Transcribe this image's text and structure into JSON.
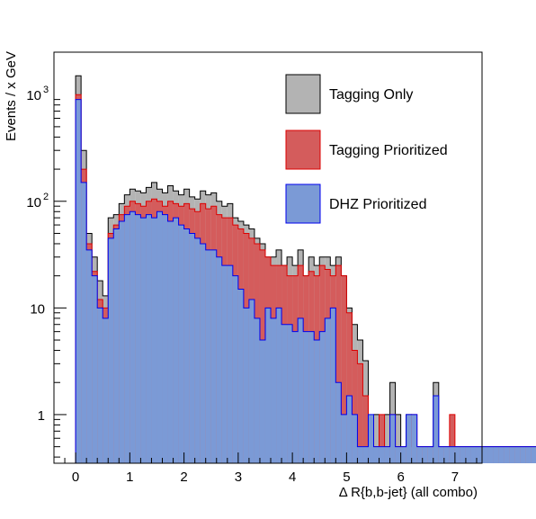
{
  "chart_data": {
    "type": "histogram",
    "xlabel": "Δ R{b,b-jet}  (all combo)",
    "ylabel": "Events / x GeV",
    "y_scale": "log",
    "xlim": [
      -0.4,
      7.5
    ],
    "ylim": [
      0.35,
      2500
    ],
    "bin_width": 0.1,
    "bin_start": -0.1,
    "x_ticks": [
      "0",
      "1",
      "2",
      "3",
      "4",
      "5",
      "6",
      "7"
    ],
    "y_ticks": [
      {
        "value": 1000,
        "label": "10",
        "exp": "3"
      },
      {
        "value": 100,
        "label": "10",
        "exp": "2"
      },
      {
        "value": 10,
        "label": "10",
        "exp": ""
      },
      {
        "value": 1,
        "label": "1",
        "exp": ""
      }
    ],
    "legend_position": "top-right",
    "series": [
      {
        "name": "Tagging Only",
        "fill": "#b3b3b3",
        "line": "#000000",
        "values": [
          0,
          1500,
          300,
          50,
          30,
          18,
          13,
          70,
          75,
          95,
          115,
          130,
          125,
          120,
          135,
          150,
          130,
          120,
          140,
          125,
          115,
          130,
          110,
          105,
          125,
          115,
          120,
          100,
          90,
          95,
          70,
          65,
          60,
          55,
          45,
          40,
          30,
          30,
          35,
          25,
          30,
          25,
          35,
          20,
          30,
          25,
          30,
          30,
          25,
          30,
          20,
          10,
          7,
          5,
          3.2,
          0.5,
          1,
          0.5,
          1,
          2,
          1,
          0.5,
          1,
          0.5,
          0.5,
          0.5,
          0.5,
          2,
          0.5,
          0.5,
          0.5,
          0.5,
          0.5,
          0.5,
          0.5,
          0.5,
          0.5,
          0.5,
          0.5,
          0.5,
          0.5,
          0.5,
          0.5,
          0.5,
          0.5,
          0.5,
          0.5,
          0.5,
          0.5,
          0.5,
          0.5,
          0.5,
          0.5,
          0.5,
          0.5,
          0.5,
          0.5,
          0.5,
          1
        ]
      },
      {
        "name": "Tagging Prioritized",
        "fill": "#d45c5c",
        "line": "#dd0000",
        "values": [
          0,
          1000,
          200,
          40,
          22,
          12,
          10,
          50,
          60,
          75,
          90,
          100,
          95,
          90,
          100,
          105,
          100,
          90,
          100,
          95,
          90,
          95,
          85,
          80,
          95,
          85,
          90,
          75,
          70,
          70,
          60,
          55,
          50,
          45,
          40,
          35,
          30,
          25,
          25,
          25,
          20,
          20,
          25,
          20,
          22,
          20,
          25,
          23,
          20,
          25,
          20,
          9,
          4,
          3,
          1.5,
          0.5,
          0.5,
          1,
          0.5,
          1,
          0.5,
          0.5,
          0.5,
          1,
          0.5,
          0.5,
          0.5,
          0.5,
          0.5,
          0.5,
          1,
          0.5,
          0.5,
          0.5,
          0.5,
          0.5,
          0.5,
          0.5,
          0.5,
          0.5,
          0.5,
          0.5,
          0.5,
          0.5,
          0.5,
          0.5,
          0.5,
          0.5,
          0.5,
          0.5,
          0.5,
          0.5,
          0.5,
          0.5,
          0.5,
          0.5,
          0.5,
          0.5,
          0.5
        ]
      },
      {
        "name": "DHZ Prioritized",
        "fill": "#7b9ad6",
        "line": "#0000ee",
        "values": [
          0,
          900,
          150,
          35,
          20,
          10,
          8,
          45,
          55,
          65,
          75,
          80,
          75,
          70,
          75,
          70,
          80,
          75,
          65,
          70,
          60,
          55,
          50,
          45,
          40,
          35,
          35,
          30,
          25,
          25,
          20,
          15,
          10,
          12,
          8,
          5,
          10,
          8,
          10,
          7,
          7,
          6,
          8,
          6,
          6,
          5,
          6,
          8,
          10,
          2,
          1,
          1.5,
          1,
          0.5,
          0.5,
          1,
          0.5,
          0.5,
          0.5,
          1,
          0.5,
          0.5,
          1,
          1,
          0.5,
          0.5,
          0.5,
          1.5,
          0.5,
          0.5,
          0.5,
          0.5,
          0.5,
          0.5,
          0.5,
          0.5,
          0.5,
          0.5,
          0.5,
          0.5,
          0.5,
          0.5,
          0.5,
          0.5,
          0.5,
          0.5,
          0.5,
          0.5,
          0.5,
          0.5,
          0.5,
          0.5,
          0.5,
          0.5,
          0.5,
          0.5,
          0.5,
          0.5,
          0.5
        ]
      }
    ]
  }
}
